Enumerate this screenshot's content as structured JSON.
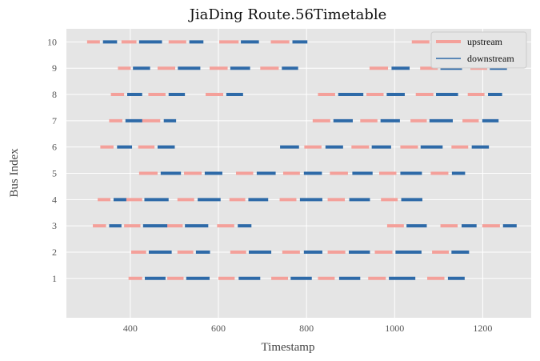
{
  "chart_data": {
    "type": "timeline",
    "title": "JiaDing Route.56Timetable",
    "xlabel": "Timestamp",
    "ylabel": "Bus Index",
    "xlim": [
      255,
      1310
    ],
    "ylim": [
      -0.5,
      10.5
    ],
    "xticks": [
      400,
      600,
      800,
      1000,
      1200
    ],
    "yticks": [
      1,
      2,
      3,
      4,
      5,
      6,
      7,
      8,
      9,
      10
    ],
    "grid": true,
    "legend_position": "top-right",
    "colors": {
      "upstream": "#f4a09a",
      "downstream": "#2e6aa8",
      "background": "#e5e5e5",
      "grid": "#ffffff"
    },
    "legend": [
      {
        "name": "upstream",
        "color": "#f4a09a"
      },
      {
        "name": "downstream",
        "color": "#2e6aa8"
      }
    ],
    "series": [
      {
        "name": "upstream",
        "segments": [
          {
            "bus": 1,
            "spans": [
              [
                396,
                427
              ],
              [
                484,
                521
              ],
              [
                600,
                637
              ],
              [
                720,
                758
              ],
              [
                826,
                864
              ],
              [
                940,
                980
              ],
              [
                1074,
                1113
              ]
            ]
          },
          {
            "bus": 2,
            "spans": [
              [
                402,
                436
              ],
              [
                507,
                543
              ],
              [
                627,
                663
              ],
              [
                745,
                785
              ],
              [
                848,
                888
              ],
              [
                955,
                995
              ],
              [
                1085,
                1123
              ]
            ]
          },
          {
            "bus": 3,
            "spans": [
              [
                315,
                345
              ],
              [
                386,
                423
              ],
              [
                482,
                519
              ],
              [
                597,
                636
              ],
              [
                983,
                1021
              ],
              [
                1104,
                1143
              ],
              [
                1199,
                1239
              ]
            ]
          },
          {
            "bus": 4,
            "spans": [
              [
                326,
                355
              ],
              [
                390,
                427
              ],
              [
                507,
                545
              ],
              [
                625,
                661
              ],
              [
                739,
                777
              ],
              [
                848,
                887
              ],
              [
                969,
                1007
              ]
            ]
          },
          {
            "bus": 5,
            "spans": [
              [
                420,
                462
              ],
              [
                522,
                562
              ],
              [
                640,
                679
              ],
              [
                747,
                785
              ],
              [
                853,
                894
              ],
              [
                965,
                1004
              ],
              [
                1082,
                1122
              ]
            ]
          },
          {
            "bus": 6,
            "spans": [
              [
                332,
                362
              ],
              [
                418,
                455
              ],
              [
                795,
                834
              ],
              [
                902,
                942
              ],
              [
                1013,
                1053
              ],
              [
                1129,
                1167
              ]
            ]
          },
          {
            "bus": 7,
            "spans": [
              [
                352,
                382
              ],
              [
                426,
                468
              ],
              [
                814,
                854
              ],
              [
                922,
                961
              ],
              [
                1036,
                1073
              ],
              [
                1154,
                1191
              ]
            ]
          },
          {
            "bus": 8,
            "spans": [
              [
                356,
                386
              ],
              [
                441,
                480
              ],
              [
                571,
                611
              ],
              [
                826,
                865
              ],
              [
                936,
                975
              ],
              [
                1048,
                1088
              ],
              [
                1166,
                1204
              ]
            ]
          },
          {
            "bus": 9,
            "spans": [
              [
                372,
                401
              ],
              [
                462,
                502
              ],
              [
                580,
                621
              ],
              [
                695,
                737
              ],
              [
                943,
                985
              ],
              [
                1058,
                1098
              ],
              [
                1172,
                1210
              ]
            ]
          },
          {
            "bus": 10,
            "spans": [
              [
                302,
                331
              ],
              [
                380,
                414
              ],
              [
                487,
                527
              ],
              [
                602,
                646
              ],
              [
                719,
                761
              ],
              [
                1039,
                1079
              ],
              [
                1154,
                1196
              ]
            ]
          }
        ]
      },
      {
        "name": "downstream",
        "segments": [
          {
            "bus": 1,
            "spans": [
              [
                433,
                480
              ],
              [
                527,
                580
              ],
              [
                646,
                695
              ],
              [
                764,
                812
              ],
              [
                874,
                922
              ],
              [
                987,
                1047
              ],
              [
                1121,
                1159
              ]
            ]
          },
          {
            "bus": 2,
            "spans": [
              [
                442,
                494
              ],
              [
                549,
                581
              ],
              [
                669,
                720
              ],
              [
                794,
                836
              ],
              [
                896,
                944
              ],
              [
                1002,
                1061
              ],
              [
                1129,
                1169
              ]
            ]
          },
          {
            "bus": 3,
            "spans": [
              [
                352,
                380
              ],
              [
                429,
                484
              ],
              [
                524,
                577
              ],
              [
                644,
                675
              ],
              [
                1027,
                1073
              ],
              [
                1152,
                1186
              ],
              [
                1246,
                1277
              ]
            ]
          },
          {
            "bus": 4,
            "spans": [
              [
                362,
                391
              ],
              [
                432,
                487
              ],
              [
                553,
                605
              ],
              [
                668,
                713
              ],
              [
                785,
                836
              ],
              [
                897,
                944
              ],
              [
                1015,
                1063
              ]
            ]
          },
          {
            "bus": 5,
            "spans": [
              [
                469,
                515
              ],
              [
                569,
                609
              ],
              [
                687,
                730
              ],
              [
                794,
                835
              ],
              [
                904,
                950
              ],
              [
                1013,
                1062
              ],
              [
                1130,
                1160
              ]
            ]
          },
          {
            "bus": 6,
            "spans": [
              [
                370,
                404
              ],
              [
                462,
                501
              ],
              [
                740,
                783
              ],
              [
                843,
                883
              ],
              [
                948,
                992
              ],
              [
                1059,
                1109
              ],
              [
                1175,
                1214
              ]
            ]
          },
          {
            "bus": 7,
            "spans": [
              [
                389,
                427
              ],
              [
                476,
                504
              ],
              [
                861,
                905
              ],
              [
                968,
                1012
              ],
              [
                1079,
                1132
              ],
              [
                1199,
                1236
              ]
            ]
          },
          {
            "bus": 8,
            "spans": [
              [
                393,
                427
              ],
              [
                487,
                524
              ],
              [
                618,
                656
              ],
              [
                872,
                929
              ],
              [
                982,
                1023
              ],
              [
                1094,
                1144
              ],
              [
                1212,
                1244
              ]
            ]
          },
          {
            "bus": 9,
            "spans": [
              [
                406,
                445
              ],
              [
                508,
                559
              ],
              [
                627,
                672
              ],
              [
                744,
                781
              ],
              [
                993,
                1034
              ],
              [
                1104,
                1153
              ],
              [
                1216,
                1255
              ]
            ]
          },
          {
            "bus": 10,
            "spans": [
              [
                338,
                370
              ],
              [
                420,
                472
              ],
              [
                534,
                566
              ],
              [
                651,
                692
              ],
              [
                768,
                802
              ],
              [
                1086,
                1132
              ],
              [
                1201,
                1248
              ]
            ]
          }
        ]
      }
    ]
  }
}
